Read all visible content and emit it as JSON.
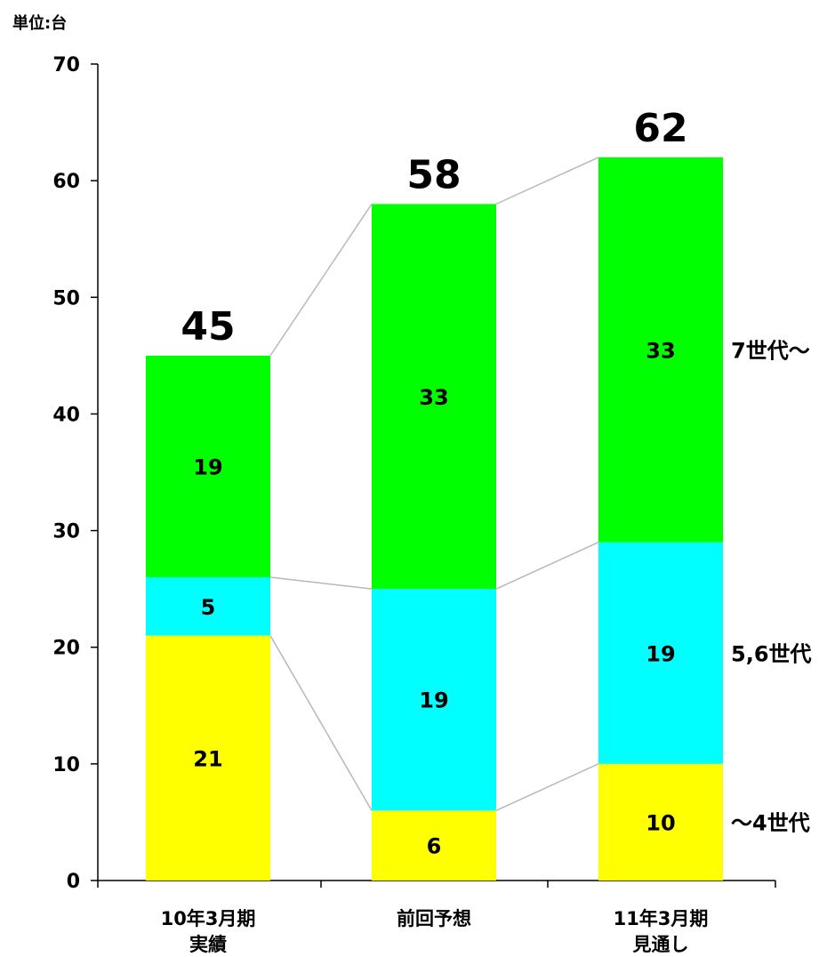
{
  "unit_label": "単位:台",
  "chart_data": {
    "type": "bar",
    "stacked": true,
    "categories": [
      [
        "10年3月期",
        "実績"
      ],
      [
        "前回予想"
      ],
      [
        "11年3月期",
        "見通し"
      ]
    ],
    "series": [
      {
        "name": "～4世代",
        "color": "#ffff00",
        "values": [
          21,
          6,
          10
        ]
      },
      {
        "name": "5,6世代",
        "color": "#00ffff",
        "values": [
          5,
          19,
          19
        ]
      },
      {
        "name": "7世代～",
        "color": "#00ff00",
        "values": [
          19,
          33,
          33
        ]
      }
    ],
    "totals": [
      45,
      58,
      62
    ],
    "ylim": [
      0,
      70
    ],
    "yticks": [
      0,
      10,
      20,
      30,
      40,
      50,
      60,
      70
    ],
    "grid": false,
    "connector_lines": true,
    "legend": "right-of-last-bar"
  }
}
